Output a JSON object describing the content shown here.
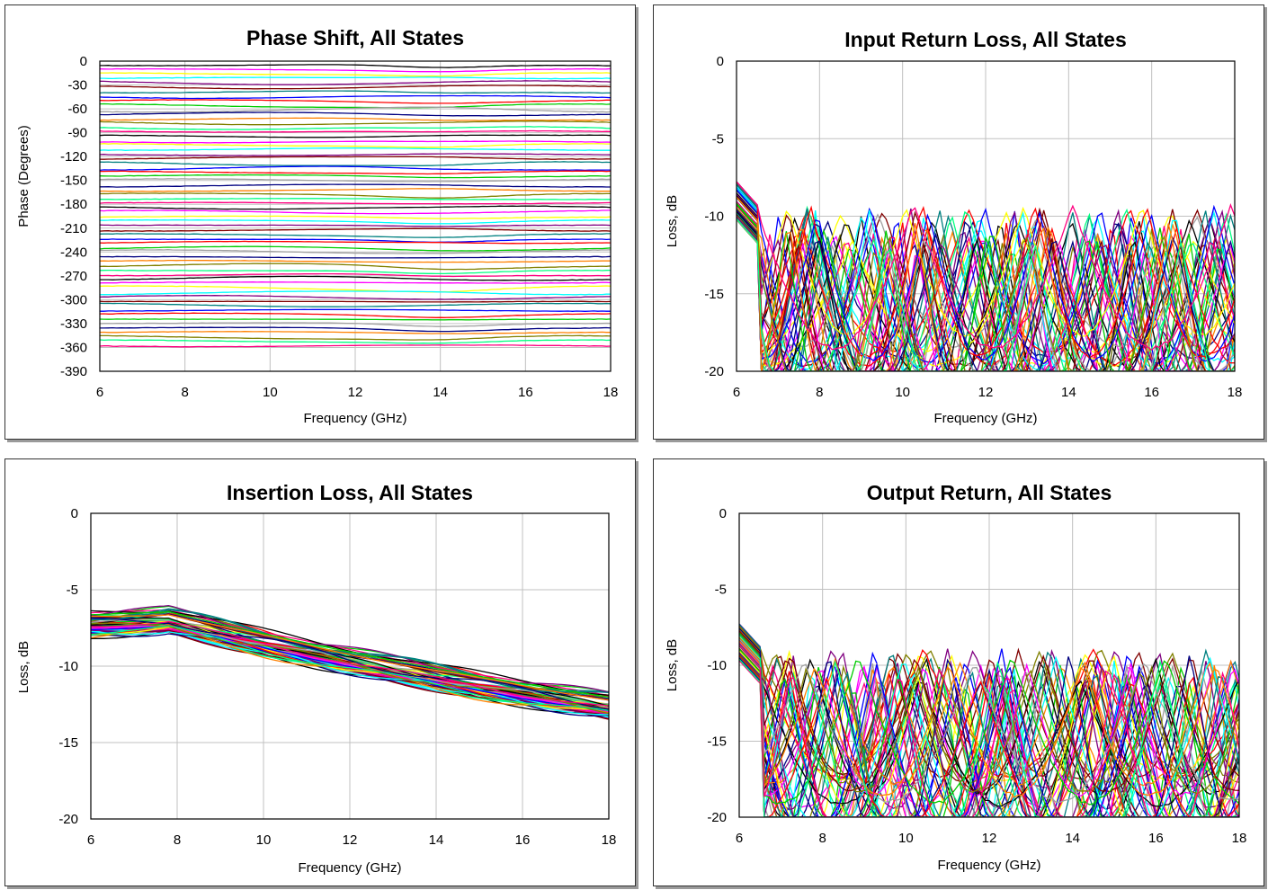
{
  "chart_data": [
    {
      "type": "line",
      "title": "Phase Shift, All States",
      "xlabel": "Frequency (GHz)",
      "ylabel": "Phase (Degrees)",
      "xlim": [
        6,
        18
      ],
      "ylim": [
        -390,
        0
      ],
      "xticks": [
        6,
        8,
        10,
        12,
        14,
        16,
        18
      ],
      "yticks": [
        0,
        -30,
        -60,
        -90,
        -120,
        -150,
        -180,
        -210,
        -240,
        -270,
        -300,
        -330,
        -360,
        -390
      ],
      "grid": true,
      "series_count": 64,
      "series_pattern": "flat lines spaced about 5.6 degrees apart from about -5 to -360, gentle ripple, minimum bump near 14 GHz"
    },
    {
      "type": "line",
      "title": "Input Return Loss, All States",
      "xlabel": "Frequency (GHz)",
      "ylabel": "Loss, dB",
      "xlim": [
        6,
        18
      ],
      "ylim": [
        -20,
        0
      ],
      "xticks": [
        6,
        8,
        10,
        12,
        14,
        16,
        18
      ],
      "yticks": [
        0,
        -5,
        -10,
        -15,
        -20
      ],
      "grid": true,
      "series_count": 64,
      "series_pattern": "ripple curves with peaks near -9 to -11 dB and nulls below -20 dB"
    },
    {
      "type": "line",
      "title": "Insertion Loss, All States",
      "xlabel": "Frequency (GHz)",
      "ylabel": "Loss, dB",
      "xlim": [
        6,
        18
      ],
      "ylim": [
        -20,
        0
      ],
      "xticks": [
        6,
        8,
        10,
        12,
        14,
        16,
        18
      ],
      "yticks": [
        0,
        -5,
        -10,
        -15,
        -20
      ],
      "grid": true,
      "series_count": 64,
      "series_pattern": "band of curves from about -7 dB at 6-8 GHz sloping to about -14 dB at 18 GHz"
    },
    {
      "type": "line",
      "title": "Output Return, All States",
      "xlabel": "Frequency (GHz)",
      "ylabel": "Loss, dB",
      "xlim": [
        6,
        18
      ],
      "ylim": [
        -20,
        0
      ],
      "xticks": [
        6,
        8,
        10,
        12,
        14,
        16,
        18
      ],
      "yticks": [
        0,
        -5,
        -10,
        -15,
        -20
      ],
      "grid": true,
      "series_count": 64,
      "series_pattern": "ripple curves with peaks near -7 to -10 dB and nulls below -20 dB"
    }
  ],
  "palette": [
    "#000000",
    "#ff00ff",
    "#ffff00",
    "#00ffff",
    "#800080",
    "#800000",
    "#008080",
    "#0000ff",
    "#ff0000",
    "#00cc00",
    "#a0a0a0",
    "#000080",
    "#ff8000",
    "#808000",
    "#00ff80",
    "#ff0080"
  ]
}
